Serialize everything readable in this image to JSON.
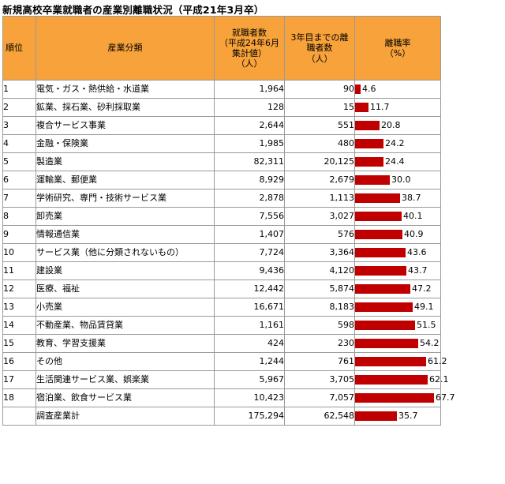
{
  "title": "新規高校卒業就職者の産業別離職状況（平成21年3月卒）",
  "colors": {
    "header_bg": "#f7a23a",
    "bar": "#c00000",
    "border": "#9a9a9a"
  },
  "chart_data": {
    "type": "table",
    "title": "新規高校卒業就職者の産業別離職状況（平成21年3月卒）",
    "columns": [
      "順位",
      "産業分類",
      "就職者数\n（平成24年6月\n集計値）\n（人）",
      "3年目までの離\n職者数\n（人）",
      "離職率\n（%）"
    ],
    "bar_max": 67.7,
    "rows": [
      {
        "rank": "1",
        "industry": "電気・ガス・熱供給・水道業",
        "employed": "1,964",
        "quit": "90",
        "rate": 4.6,
        "rate_label": "4.6"
      },
      {
        "rank": "2",
        "industry": "鉱業、採石業、砂利採取業",
        "employed": "128",
        "quit": "15",
        "rate": 11.7,
        "rate_label": "11.7"
      },
      {
        "rank": "3",
        "industry": "複合サービス事業",
        "employed": "2,644",
        "quit": "551",
        "rate": 20.8,
        "rate_label": "20.8"
      },
      {
        "rank": "4",
        "industry": "金融・保険業",
        "employed": "1,985",
        "quit": "480",
        "rate": 24.2,
        "rate_label": "24.2"
      },
      {
        "rank": "5",
        "industry": "製造業",
        "employed": "82,311",
        "quit": "20,125",
        "rate": 24.4,
        "rate_label": "24.4"
      },
      {
        "rank": "6",
        "industry": "運輸業、郵便業",
        "employed": "8,929",
        "quit": "2,679",
        "rate": 30.0,
        "rate_label": "30.0"
      },
      {
        "rank": "7",
        "industry": "学術研究、専門・技術サービス業",
        "employed": "2,878",
        "quit": "1,113",
        "rate": 38.7,
        "rate_label": "38.7"
      },
      {
        "rank": "8",
        "industry": "卸売業",
        "employed": "7,556",
        "quit": "3,027",
        "rate": 40.1,
        "rate_label": "40.1"
      },
      {
        "rank": "9",
        "industry": "情報通信業",
        "employed": "1,407",
        "quit": "576",
        "rate": 40.9,
        "rate_label": "40.9"
      },
      {
        "rank": "10",
        "industry": "サービス業（他に分類されないもの）",
        "employed": "7,724",
        "quit": "3,364",
        "rate": 43.6,
        "rate_label": "43.6"
      },
      {
        "rank": "11",
        "industry": "建設業",
        "employed": "9,436",
        "quit": "4,120",
        "rate": 43.7,
        "rate_label": "43.7"
      },
      {
        "rank": "12",
        "industry": "医療、福祉",
        "employed": "12,442",
        "quit": "5,874",
        "rate": 47.2,
        "rate_label": "47.2"
      },
      {
        "rank": "13",
        "industry": "小売業",
        "employed": "16,671",
        "quit": "8,183",
        "rate": 49.1,
        "rate_label": "49.1"
      },
      {
        "rank": "14",
        "industry": "不動産業、物品賃貸業",
        "employed": "1,161",
        "quit": "598",
        "rate": 51.5,
        "rate_label": "51.5"
      },
      {
        "rank": "15",
        "industry": "教育、学習支援業",
        "employed": "424",
        "quit": "230",
        "rate": 54.2,
        "rate_label": "54.2"
      },
      {
        "rank": "16",
        "industry": "その他",
        "employed": "1,244",
        "quit": "761",
        "rate": 61.2,
        "rate_label": "61.2"
      },
      {
        "rank": "17",
        "industry": "生活関連サービス業、娯楽業",
        "employed": "5,967",
        "quit": "3,705",
        "rate": 62.1,
        "rate_label": "62.1"
      },
      {
        "rank": "18",
        "industry": "宿泊業、飲食サービス業",
        "employed": "10,423",
        "quit": "7,057",
        "rate": 67.7,
        "rate_label": "67.7"
      },
      {
        "rank": "",
        "industry": "調査産業計",
        "employed": "175,294",
        "quit": "62,548",
        "rate": 35.7,
        "rate_label": "35.7"
      }
    ]
  }
}
